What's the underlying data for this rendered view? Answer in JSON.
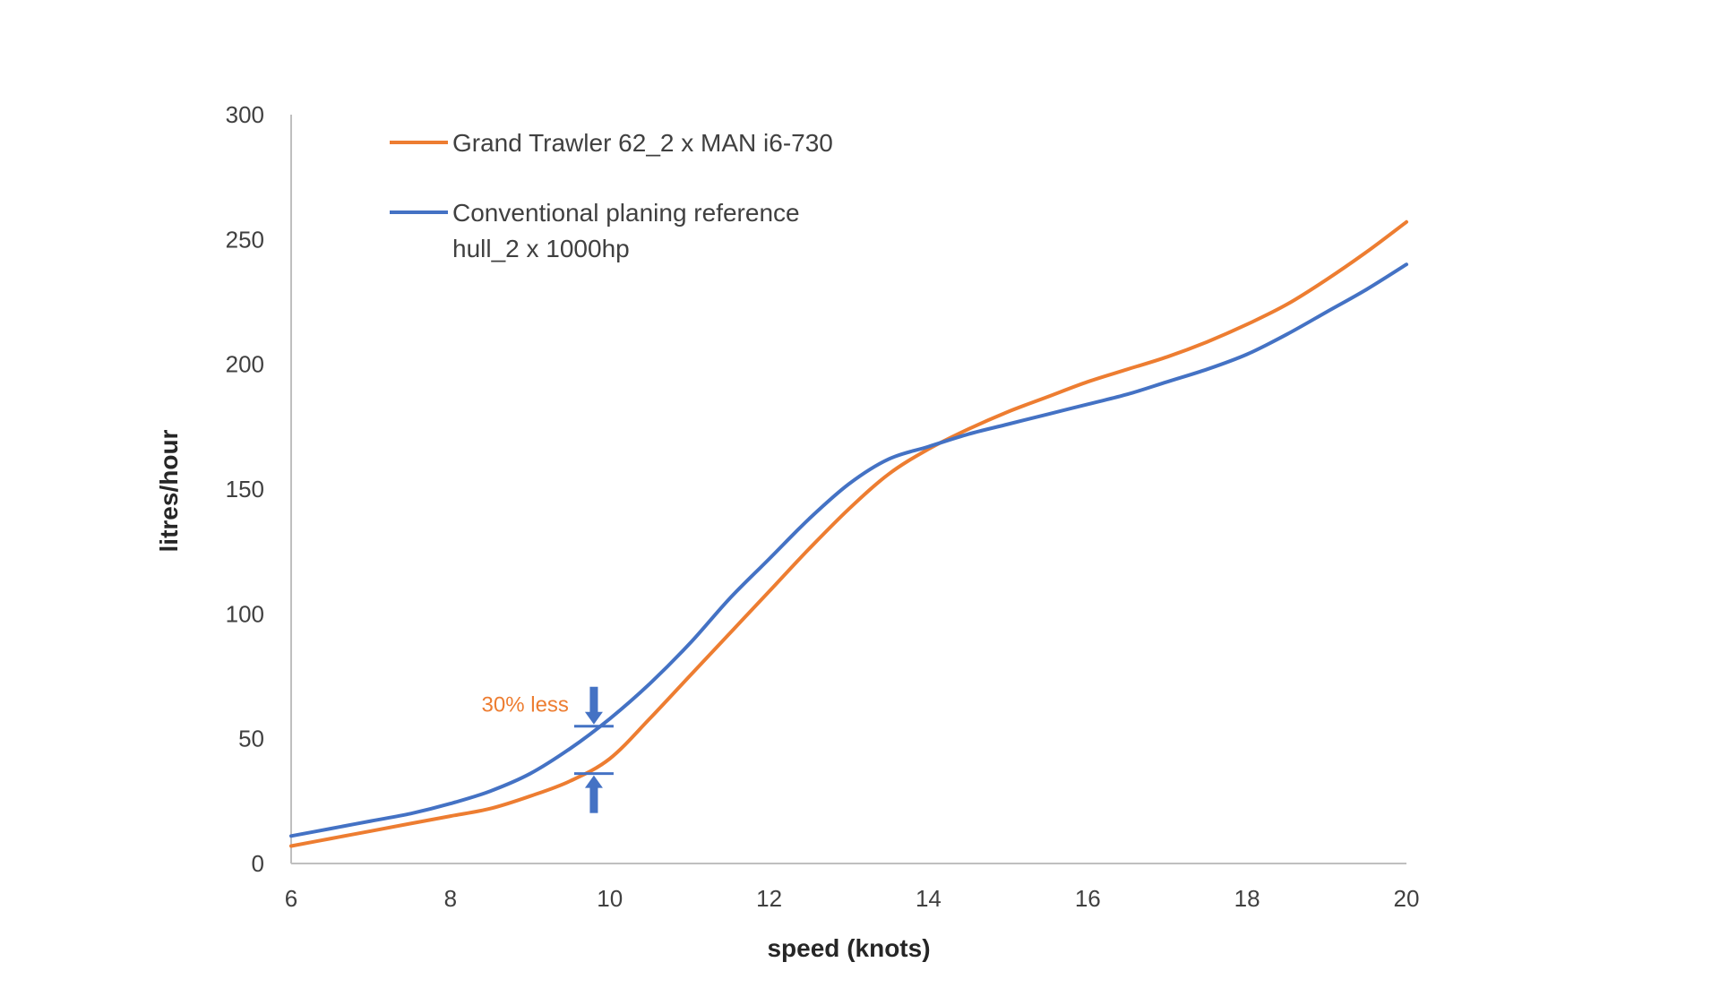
{
  "chart_data": {
    "type": "line",
    "title": "",
    "xlabel": "speed (knots)",
    "ylabel": "litres/hour",
    "xlim": [
      6,
      20
    ],
    "ylim": [
      0,
      300
    ],
    "x_ticks": [
      6,
      8,
      10,
      12,
      14,
      16,
      18,
      20
    ],
    "y_ticks": [
      0,
      50,
      100,
      150,
      200,
      250,
      300
    ],
    "grid": false,
    "legend_position": "top-left",
    "series": [
      {
        "name": "Grand Trawler 62_2 x MAN i6-730",
        "color": "#ED7D31",
        "x": [
          6,
          6.5,
          7,
          7.5,
          8,
          8.5,
          9,
          9.5,
          10,
          10.5,
          11,
          11.5,
          12,
          12.5,
          13,
          13.5,
          14,
          14.5,
          15,
          15.5,
          16,
          16.5,
          17,
          17.5,
          18,
          18.5,
          19,
          19.5,
          20
        ],
        "y": [
          7,
          10,
          13,
          16,
          19,
          22,
          27,
          33,
          42,
          58,
          75,
          92,
          109,
          126,
          142,
          156,
          166,
          174,
          181,
          187,
          193,
          198,
          203,
          209,
          216,
          224,
          234,
          245,
          257
        ]
      },
      {
        "name": "Conventional planing reference hull_2 x 1000hp",
        "legend_lines": [
          "Conventional planing reference",
          "hull_2 x 1000hp"
        ],
        "color": "#4472C4",
        "x": [
          6,
          6.5,
          7,
          7.5,
          8,
          8.5,
          9,
          9.5,
          10,
          10.5,
          11,
          11.5,
          12,
          12.5,
          13,
          13.5,
          14,
          14.5,
          15,
          15.5,
          16,
          16.5,
          17,
          17.5,
          18,
          18.5,
          19,
          19.5,
          20
        ],
        "y": [
          11,
          14,
          17,
          20,
          24,
          29,
          36,
          46,
          58,
          72,
          88,
          106,
          122,
          138,
          152,
          162,
          167,
          172,
          176,
          180,
          184,
          188,
          193,
          198,
          204,
          212,
          221,
          230,
          240
        ]
      }
    ],
    "annotation": {
      "text": "30% less",
      "color": "#ED7D31",
      "arrow_color": "#4472C4",
      "x": 9.8,
      "y_upper": 55,
      "y_lower": 36
    }
  }
}
